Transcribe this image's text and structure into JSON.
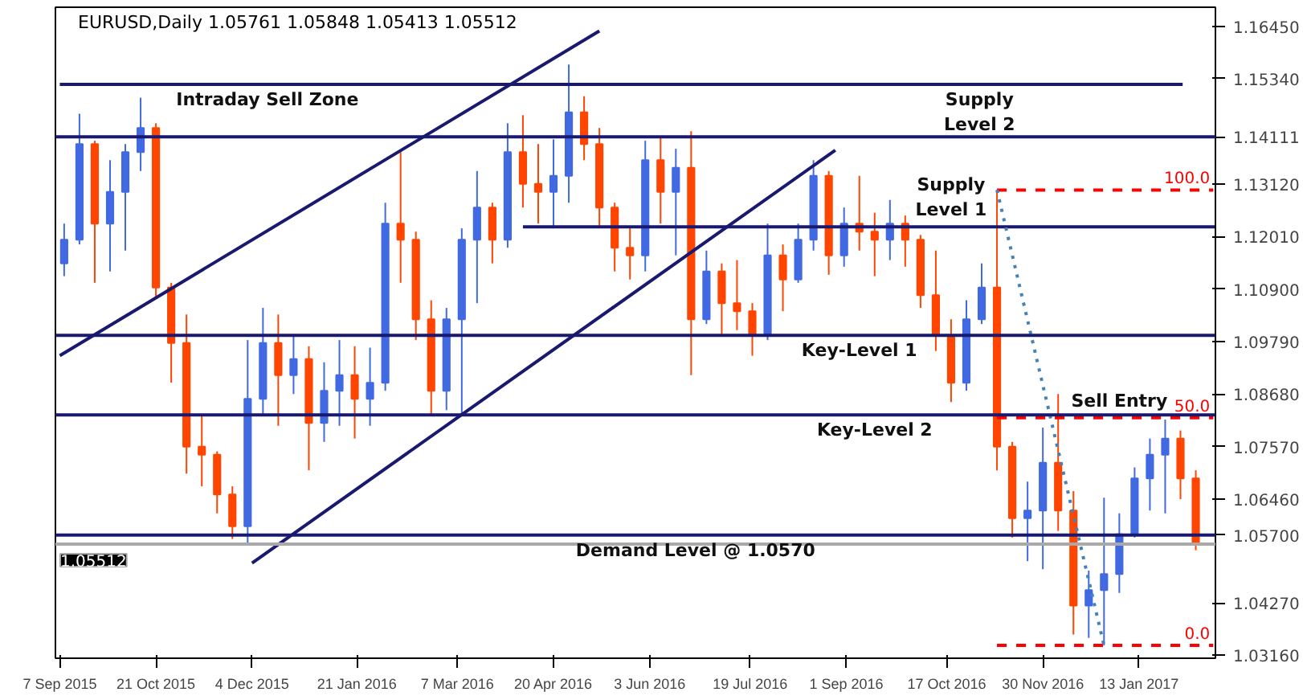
{
  "chart_data": {
    "type": "candlestick",
    "title": "EURUSD,Daily  1.05761 1.05848 1.05413 1.05512",
    "xlim": [
      "2015-09-05",
      "2017-02-17"
    ],
    "ylim": [
      1.031,
      1.1685
    ],
    "xticks": [
      {
        "value": "2015-09-07",
        "label": "7 Sep 2015"
      },
      {
        "value": "2015-10-21",
        "label": "21 Oct 2015"
      },
      {
        "value": "2015-12-04",
        "label": "4 Dec 2015"
      },
      {
        "value": "2016-01-21",
        "label": "21 Jan 2016"
      },
      {
        "value": "2016-03-07",
        "label": "7 Mar 2016"
      },
      {
        "value": "2016-04-20",
        "label": "20 Apr 2016"
      },
      {
        "value": "2016-06-03",
        "label": "3 Jun 2016"
      },
      {
        "value": "2016-07-19",
        "label": "19 Jul 2016"
      },
      {
        "value": "2016-09-01",
        "label": "1 Sep 2016"
      },
      {
        "value": "2016-10-17",
        "label": "17 Oct 2016"
      },
      {
        "value": "2016-11-30",
        "label": "30 Nov 2016"
      },
      {
        "value": "2017-01-13",
        "label": "13 Jan 2017"
      }
    ],
    "yticks": [
      {
        "value": 1.1645,
        "label": "1.16450"
      },
      {
        "value": 1.1534,
        "label": "1.15340"
      },
      {
        "value": 1.1312,
        "label": "1.13120"
      },
      {
        "value": 1.1201,
        "label": "1.12010"
      },
      {
        "value": 1.109,
        "label": "1.10900"
      },
      {
        "value": 1.0979,
        "label": "1.09790"
      },
      {
        "value": 1.0868,
        "label": "1.08680"
      },
      {
        "value": 1.0757,
        "label": "1.07570"
      },
      {
        "value": 1.0646,
        "label": "1.06460"
      },
      {
        "value": 1.0427,
        "label": "1.04270"
      },
      {
        "value": 1.0316,
        "label": "1.03160"
      }
    ],
    "x": [
      "2015-09-09",
      "2015-09-16",
      "2015-09-23",
      "2015-09-30",
      "2015-10-07",
      "2015-10-14",
      "2015-10-21",
      "2015-10-28",
      "2015-11-04",
      "2015-11-11",
      "2015-11-18",
      "2015-11-25",
      "2015-12-02",
      "2015-12-09",
      "2015-12-16",
      "2015-12-23",
      "2015-12-30",
      "2016-01-06",
      "2016-01-13",
      "2016-01-20",
      "2016-01-27",
      "2016-02-03",
      "2016-02-10",
      "2016-02-17",
      "2016-02-24",
      "2016-03-02",
      "2016-03-09",
      "2016-03-16",
      "2016-03-23",
      "2016-03-30",
      "2016-04-06",
      "2016-04-13",
      "2016-04-20",
      "2016-04-27",
      "2016-05-04",
      "2016-05-11",
      "2016-05-18",
      "2016-05-25",
      "2016-06-01",
      "2016-06-08",
      "2016-06-15",
      "2016-06-22",
      "2016-06-29",
      "2016-07-06",
      "2016-07-13",
      "2016-07-20",
      "2016-07-27",
      "2016-08-03",
      "2016-08-10",
      "2016-08-17",
      "2016-08-24",
      "2016-08-31",
      "2016-09-07",
      "2016-09-14",
      "2016-09-21",
      "2016-09-28",
      "2016-10-05",
      "2016-10-12",
      "2016-10-19",
      "2016-10-26",
      "2016-11-02",
      "2016-11-09",
      "2016-11-16",
      "2016-11-23",
      "2016-11-30",
      "2016-12-07",
      "2016-12-14",
      "2016-12-21",
      "2016-12-28",
      "2017-01-04",
      "2017-01-11",
      "2017-01-18",
      "2017-01-25",
      "2017-02-01",
      "2017-02-08"
    ],
    "ohlc": [
      [
        1.1144,
        1.1228,
        1.1117,
        1.1194
      ],
      [
        1.1194,
        1.146,
        1.1184,
        1.1396
      ],
      [
        1.1396,
        1.1403,
        1.1103,
        1.1228
      ],
      [
        1.1228,
        1.1362,
        1.1127,
        1.1295
      ],
      [
        1.1295,
        1.1396,
        1.1171,
        1.1379
      ],
      [
        1.1379,
        1.1494,
        1.1339,
        1.143
      ],
      [
        1.143,
        1.144,
        1.107,
        1.1093
      ],
      [
        1.1093,
        1.1103,
        1.0892,
        1.0976
      ],
      [
        1.0976,
        1.1036,
        1.07,
        1.0757
      ],
      [
        1.0757,
        1.0824,
        1.0673,
        1.074
      ],
      [
        1.074,
        1.0747,
        1.0616,
        1.0656
      ],
      [
        1.0656,
        1.0673,
        1.0562,
        1.0589
      ],
      [
        1.0589,
        1.0982,
        1.0548,
        1.0858
      ],
      [
        1.0858,
        1.105,
        1.0824,
        1.0976
      ],
      [
        1.0976,
        1.1036,
        1.0801,
        1.0908
      ],
      [
        1.0908,
        1.0992,
        1.0868,
        1.0942
      ],
      [
        1.0942,
        1.0969,
        1.0707,
        1.0807
      ],
      [
        1.0807,
        1.0935,
        1.0767,
        1.0875
      ],
      [
        1.0875,
        1.0982,
        1.0801,
        1.0908
      ],
      [
        1.0908,
        1.0969,
        1.0774,
        1.0858
      ],
      [
        1.0858,
        1.0966,
        1.0801,
        1.0892
      ],
      [
        1.0892,
        1.1272,
        1.0875,
        1.1228
      ],
      [
        1.1228,
        1.1379,
        1.1103,
        1.1194
      ],
      [
        1.1194,
        1.1211,
        1.0982,
        1.1026
      ],
      [
        1.1026,
        1.1066,
        1.0824,
        1.0875
      ],
      [
        1.0875,
        1.105,
        1.0834,
        1.1026
      ],
      [
        1.1026,
        1.1218,
        1.0824,
        1.1194
      ],
      [
        1.1194,
        1.1339,
        1.106,
        1.1262
      ],
      [
        1.1262,
        1.1272,
        1.1144,
        1.1194
      ],
      [
        1.1194,
        1.144,
        1.1177,
        1.1379
      ],
      [
        1.1379,
        1.1457,
        1.1262,
        1.1312
      ],
      [
        1.1312,
        1.1396,
        1.1228,
        1.1295
      ],
      [
        1.1295,
        1.1406,
        1.1218,
        1.1329
      ],
      [
        1.1329,
        1.1564,
        1.1272,
        1.1463
      ],
      [
        1.1463,
        1.1497,
        1.1362,
        1.1396
      ],
      [
        1.1396,
        1.143,
        1.1218,
        1.1262
      ],
      [
        1.1262,
        1.1272,
        1.1127,
        1.1177
      ],
      [
        1.1177,
        1.1218,
        1.111,
        1.1161
      ],
      [
        1.1161,
        1.1403,
        1.1127,
        1.1362
      ],
      [
        1.1362,
        1.1413,
        1.1228,
        1.1295
      ],
      [
        1.1295,
        1.1386,
        1.1161,
        1.1346
      ],
      [
        1.1346,
        1.1423,
        1.0908,
        1.1026
      ],
      [
        1.1026,
        1.1171,
        1.1016,
        1.1127
      ],
      [
        1.1127,
        1.1144,
        1.0992,
        1.106
      ],
      [
        1.106,
        1.1151,
        1.1003,
        1.1043
      ],
      [
        1.1043,
        1.106,
        1.0949,
        1.0992
      ],
      [
        1.0992,
        1.1228,
        1.0982,
        1.1161
      ],
      [
        1.1161,
        1.1184,
        1.1043,
        1.111
      ],
      [
        1.111,
        1.1228,
        1.1103,
        1.1194
      ],
      [
        1.1194,
        1.1362,
        1.1171,
        1.1329
      ],
      [
        1.1329,
        1.1339,
        1.112,
        1.1161
      ],
      [
        1.1161,
        1.1262,
        1.1137,
        1.1228
      ],
      [
        1.1228,
        1.1329,
        1.1171,
        1.1211
      ],
      [
        1.1211,
        1.1251,
        1.1117,
        1.1194
      ],
      [
        1.1194,
        1.1278,
        1.1151,
        1.1228
      ],
      [
        1.1228,
        1.1245,
        1.1137,
        1.1194
      ],
      [
        1.1194,
        1.1204,
        1.105,
        1.1077
      ],
      [
        1.1077,
        1.1171,
        1.0959,
        1.0992
      ],
      [
        1.0992,
        1.1026,
        1.0851,
        1.0892
      ],
      [
        1.0892,
        1.1066,
        1.0875,
        1.1026
      ],
      [
        1.1026,
        1.1144,
        1.1016,
        1.1093
      ],
      [
        1.1093,
        1.1299,
        1.0707,
        1.0757
      ],
      [
        1.0757,
        1.0767,
        1.0565,
        1.0606
      ],
      [
        1.0606,
        1.0683,
        1.0515,
        1.0622
      ],
      [
        1.0622,
        1.0797,
        1.0498,
        1.0723
      ],
      [
        1.0723,
        1.0868,
        1.0579,
        1.0622
      ],
      [
        1.0622,
        1.0663,
        1.036,
        1.0421
      ],
      [
        1.0421,
        1.0495,
        1.0353,
        1.0454
      ],
      [
        1.0454,
        1.0649,
        1.0337,
        1.0488
      ],
      [
        1.0488,
        1.0616,
        1.0448,
        1.0572
      ],
      [
        1.0572,
        1.0713,
        1.0565,
        1.069
      ],
      [
        1.069,
        1.0774,
        1.0622,
        1.074
      ],
      [
        1.074,
        1.0814,
        1.0616,
        1.0774
      ],
      [
        1.0774,
        1.0791,
        1.0646,
        1.069
      ],
      [
        1.069,
        1.0707,
        1.0538,
        1.0551
      ]
    ],
    "colors": [
      "#4169e1",
      "#4169e1",
      "#ff4500",
      "#4169e1",
      "#4169e1",
      "#4169e1",
      "#ff4500",
      "#ff4500",
      "#ff4500",
      "#ff4500",
      "#ff4500",
      "#ff4500",
      "#4169e1",
      "#4169e1",
      "#ff4500",
      "#4169e1",
      "#ff4500",
      "#4169e1",
      "#4169e1",
      "#ff4500",
      "#4169e1",
      "#4169e1",
      "#ff4500",
      "#ff4500",
      "#ff4500",
      "#4169e1",
      "#4169e1",
      "#4169e1",
      "#ff4500",
      "#4169e1",
      "#ff4500",
      "#ff4500",
      "#4169e1",
      "#4169e1",
      "#ff4500",
      "#ff4500",
      "#ff4500",
      "#ff4500",
      "#4169e1",
      "#ff4500",
      "#4169e1",
      "#ff4500",
      "#4169e1",
      "#ff4500",
      "#ff4500",
      "#ff4500",
      "#4169e1",
      "#ff4500",
      "#4169e1",
      "#4169e1",
      "#ff4500",
      "#4169e1",
      "#ff4500",
      "#ff4500",
      "#4169e1",
      "#ff4500",
      "#ff4500",
      "#ff4500",
      "#ff4500",
      "#4169e1",
      "#4169e1",
      "#ff4500",
      "#ff4500",
      "#4169e1",
      "#4169e1",
      "#ff4500",
      "#ff4500",
      "#4169e1",
      "#4169e1",
      "#4169e1",
      "#4169e1",
      "#4169e1",
      "#4169e1",
      "#ff4500",
      "#ff4500"
    ],
    "series": [
      {
        "type": "line",
        "color": "#191970",
        "x": [
          "2015-09-07",
          "2017-02-02"
        ],
        "values": [
          1.1522,
          1.1522
        ]
      },
      {
        "type": "line",
        "color": "#191970",
        "x": [
          "2016-04-06",
          "2017-02-17"
        ],
        "values": [
          1.1221,
          1.1221
        ]
      },
      {
        "type": "line",
        "color": "#191970",
        "x": [
          "2015-09-07",
          "2016-05-11"
        ],
        "values": [
          1.0949,
          1.1635
        ]
      },
      {
        "type": "line",
        "color": "#191970",
        "x": [
          "2015-12-04",
          "2016-08-27"
        ],
        "values": [
          1.0511,
          1.1383
        ]
      },
      {
        "type": "line",
        "color": "#ff0000",
        "line_style": "dashed",
        "name": "100.0",
        "x": [
          "2016-11-09",
          "2017-02-16"
        ],
        "values": [
          1.1299,
          1.1299
        ]
      },
      {
        "type": "line",
        "color": "#ff0000",
        "line_style": "dashed",
        "name": "50.0",
        "x": [
          "2016-11-09",
          "2017-02-16"
        ],
        "values": [
          1.0818,
          1.0818
        ]
      },
      {
        "type": "line",
        "color": "#ff0000",
        "line_style": "dashed",
        "name": "0.0",
        "x": [
          "2016-11-09",
          "2017-02-16"
        ],
        "values": [
          1.0337,
          1.0337
        ]
      },
      {
        "type": "line",
        "color": "#4682b4",
        "line_style": "dotted",
        "x": [
          "2016-11-09",
          "2016-12-28"
        ],
        "values": [
          1.1299,
          1.0337
        ]
      }
    ],
    "ref_lines": [
      {
        "axis": "y",
        "value": 1.14111,
        "label": "1.14111",
        "color": "#191970"
      },
      {
        "axis": "y",
        "value": 1.0992,
        "color": "#191970"
      },
      {
        "axis": "y",
        "value": 1.0824,
        "color": "#191970"
      },
      {
        "axis": "y",
        "value": 1.057,
        "label": "1.05700",
        "color": "#191970"
      },
      {
        "axis": "y",
        "value": 1.05512,
        "label": "1.05512",
        "color": "#a9a9a9"
      }
    ],
    "annotations": [
      {
        "text": "Intraday Sell Zone",
        "x": "2015-12-11",
        "y": 1.1522
      },
      {
        "text": "Supply\nLevel 2",
        "x": "2016-11-01",
        "y": 1.1522
      },
      {
        "text": "Supply\nLevel 1",
        "x": "2016-10-19",
        "y": 1.1221
      },
      {
        "text": "Key-Level 1",
        "x": "2016-09-07",
        "y": 1.0992
      },
      {
        "text": "Key-Level 2",
        "x": "2016-09-14",
        "y": 1.0824
      },
      {
        "text": "Demand Level @ 1.0570",
        "x": "2016-06-24",
        "y": 1.057
      },
      {
        "text": "Sell Entry",
        "x": "2017-01-04",
        "y": 1.0818
      }
    ],
    "grid": false
  }
}
